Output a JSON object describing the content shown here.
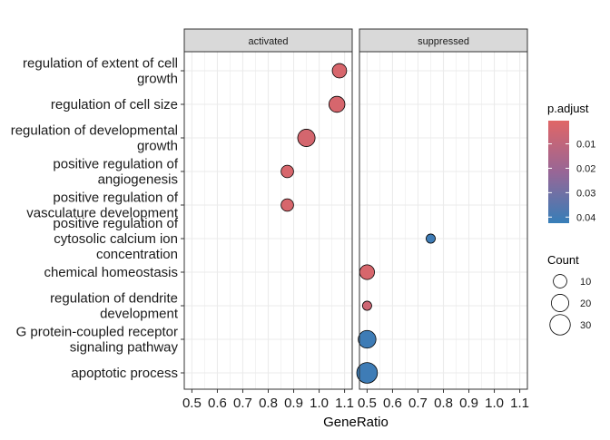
{
  "chart_data": {
    "type": "scatter",
    "xlabel": "GeneRatio",
    "ylabel": "",
    "xlim": [
      0.47,
      1.13
    ],
    "x_ticks": [
      "0.5",
      "0.6",
      "0.7",
      "0.8",
      "0.9",
      "1.0",
      "1.1"
    ],
    "x_tick_values": [
      0.5,
      0.6,
      0.7,
      0.8,
      0.9,
      1.0,
      1.1
    ],
    "grid": true,
    "facets": [
      "activated",
      "suppressed"
    ],
    "categories": [
      [
        "regulation of extent of cell",
        "growth"
      ],
      [
        "regulation of cell size"
      ],
      [
        "regulation of developmental",
        "growth"
      ],
      [
        "positive regulation of",
        "angiogenesis"
      ],
      [
        "positive regulation of",
        "vasculature development"
      ],
      [
        "positive regulation of",
        "cytosolic calcium ion",
        "concentration"
      ],
      [
        "chemical homeostasis"
      ],
      [
        "regulation of dendrite",
        "development"
      ],
      [
        "G protein-coupled receptor",
        "signaling pathway"
      ],
      [
        "apoptotic process"
      ]
    ],
    "points": [
      {
        "facet": "activated",
        "category": 0,
        "x": 1.08,
        "count": 12,
        "p_adjust": 0.003
      },
      {
        "facet": "activated",
        "category": 1,
        "x": 1.07,
        "count": 16,
        "p_adjust": 0.0035
      },
      {
        "facet": "activated",
        "category": 2,
        "x": 0.95,
        "count": 20,
        "p_adjust": 0.004
      },
      {
        "facet": "activated",
        "category": 3,
        "x": 0.875,
        "count": 8,
        "p_adjust": 0.003
      },
      {
        "facet": "activated",
        "category": 4,
        "x": 0.875,
        "count": 8,
        "p_adjust": 0.003
      },
      {
        "facet": "suppressed",
        "category": 5,
        "x": 0.75,
        "count": 3,
        "p_adjust": 0.041
      },
      {
        "facet": "suppressed",
        "category": 6,
        "x": 0.5,
        "count": 13,
        "p_adjust": 0.003
      },
      {
        "facet": "suppressed",
        "category": 7,
        "x": 0.5,
        "count": 3,
        "p_adjust": 0.006
      },
      {
        "facet": "suppressed",
        "category": 8,
        "x": 0.5,
        "count": 21,
        "p_adjust": 0.041
      },
      {
        "facet": "suppressed",
        "category": 9,
        "x": 0.5,
        "count": 31,
        "p_adjust": 0.041
      }
    ],
    "color_legend": {
      "title": "p.adjust",
      "ticks": [
        "0.01",
        "0.02",
        "0.03",
        "0.04"
      ],
      "tick_values": [
        0.01,
        0.02,
        0.03,
        0.04
      ],
      "range": [
        0.0005,
        0.0425
      ],
      "low_color": "#E06666",
      "high_color": "#377EB8"
    },
    "size_legend": {
      "title": "Count",
      "labels": [
        "10",
        "20",
        "30"
      ],
      "values": [
        10,
        20,
        30
      ]
    },
    "colors": {
      "panel_border": "#333333",
      "strip_fill": "#D9D9D9",
      "grid": "#EBEBEB",
      "point_stroke": "#000000"
    }
  }
}
